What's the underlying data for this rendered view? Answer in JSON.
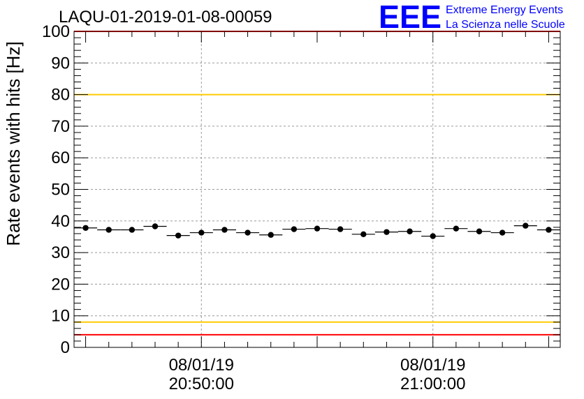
{
  "header": {
    "run_title": "LAQU-01-2019-01-08-00059",
    "logo_text": "EEE",
    "logo_line1": "Extreme Energy Events",
    "logo_line2": "La Scienza nelle Scuole"
  },
  "chart_data": {
    "type": "scatter",
    "title": "LAQU-01-2019-01-08-00059",
    "ylabel": "Rate events with hits [Hz]",
    "xlabel": "",
    "ylim": [
      0,
      100
    ],
    "y_ticks": [
      0,
      10,
      20,
      30,
      40,
      50,
      60,
      70,
      80,
      90,
      100
    ],
    "x_tick_labels": [
      {
        "date": "08/01/19",
        "time": "20:50:00",
        "minute": 5.5
      },
      {
        "date": "08/01/19",
        "time": "21:00:00",
        "minute": 15.5
      }
    ],
    "x_range_minutes_from_20_44_30": [
      0,
      21
    ],
    "grid": true,
    "points": [
      {
        "x": 0.5,
        "y": 37.8
      },
      {
        "x": 1.5,
        "y": 37.2
      },
      {
        "x": 2.5,
        "y": 37.2
      },
      {
        "x": 3.5,
        "y": 38.3
      },
      {
        "x": 4.5,
        "y": 35.4
      },
      {
        "x": 5.5,
        "y": 36.3
      },
      {
        "x": 6.5,
        "y": 37.2
      },
      {
        "x": 7.5,
        "y": 36.3
      },
      {
        "x": 8.5,
        "y": 35.6
      },
      {
        "x": 9.5,
        "y": 37.4
      },
      {
        "x": 10.5,
        "y": 37.6
      },
      {
        "x": 11.5,
        "y": 37.4
      },
      {
        "x": 12.5,
        "y": 35.8
      },
      {
        "x": 13.5,
        "y": 36.5
      },
      {
        "x": 14.5,
        "y": 36.7
      },
      {
        "x": 15.5,
        "y": 35.2
      },
      {
        "x": 16.5,
        "y": 37.6
      },
      {
        "x": 17.5,
        "y": 36.7
      },
      {
        "x": 18.5,
        "y": 36.3
      },
      {
        "x": 19.5,
        "y": 38.5
      },
      {
        "x": 20.5,
        "y": 37.2
      }
    ],
    "reference_lines": [
      {
        "y": 100,
        "color": "#ff0000"
      },
      {
        "y": 80,
        "color": "#ffcc00"
      },
      {
        "y": 8,
        "color": "#ffcc00"
      },
      {
        "y": 4,
        "color": "#ff0000"
      }
    ],
    "colors": {
      "logo": "#0000ff",
      "points": "#000000"
    }
  }
}
